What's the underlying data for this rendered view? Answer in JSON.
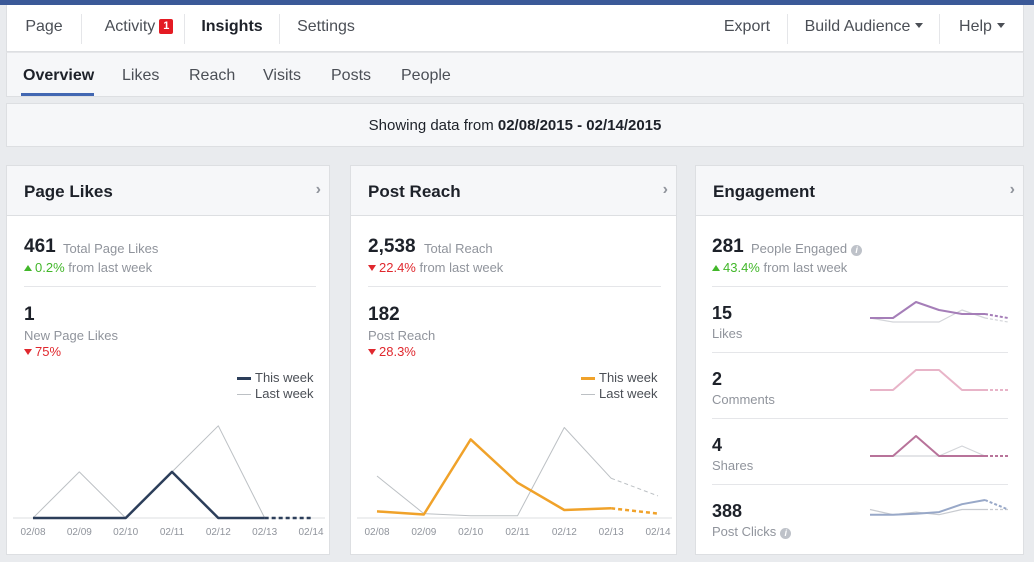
{
  "top_nav": {
    "left": [
      {
        "label": "Page"
      },
      {
        "label": "Activity",
        "badge": "1"
      },
      {
        "label": "Insights"
      },
      {
        "label": "Settings"
      }
    ],
    "export_label": "Export",
    "build_audience_label": "Build Audience",
    "help_label": "Help"
  },
  "sub_nav": {
    "tabs": [
      {
        "label": "Overview"
      },
      {
        "label": "Likes"
      },
      {
        "label": "Reach"
      },
      {
        "label": "Visits"
      },
      {
        "label": "Posts"
      },
      {
        "label": "People"
      }
    ]
  },
  "date_range": {
    "prefix": "Showing data from ",
    "range": "02/08/2015 - 02/14/2015"
  },
  "page_likes": {
    "title": "Page Likes",
    "total_value": "461",
    "total_label": "Total Page Likes",
    "total_change": "0.2%",
    "total_change_suffix": "from last week",
    "new_value": "1",
    "new_label": "New Page Likes",
    "new_change": "75%",
    "legend_this": "This week",
    "legend_last": "Last week",
    "color_this": "#2c3e5a",
    "color_last": "#bcc0c4",
    "chart_data": {
      "type": "line",
      "x": [
        "02/08",
        "02/09",
        "02/10",
        "02/11",
        "02/12",
        "02/13",
        "02/14"
      ],
      "ylim": [
        0,
        2.3
      ],
      "series": [
        {
          "name": "This week",
          "values": [
            0,
            0,
            0,
            1,
            0,
            0,
            0
          ]
        },
        {
          "name": "Last week",
          "values": [
            0,
            1,
            0,
            1,
            2,
            0,
            0
          ]
        }
      ]
    }
  },
  "post_reach": {
    "title": "Post Reach",
    "total_value": "2,538",
    "total_label": "Total Reach",
    "total_change": "22.4%",
    "total_change_suffix": "from last week",
    "post_value": "182",
    "post_label": "Post Reach",
    "post_change": "28.3%",
    "legend_this": "This week",
    "legend_last": "Last week",
    "color_this": "#f0a22a",
    "color_last": "#bcc0c4",
    "chart_data": {
      "type": "line",
      "x": [
        "02/08",
        "02/09",
        "02/10",
        "02/11",
        "02/12",
        "02/13",
        "02/14"
      ],
      "ylim": [
        0,
        240
      ],
      "series": [
        {
          "name": "This week",
          "values": [
            15,
            8,
            178,
            80,
            18,
            22,
            10
          ]
        },
        {
          "name": "Last week",
          "values": [
            95,
            10,
            5,
            5,
            205,
            90,
            50
          ]
        }
      ]
    }
  },
  "engagement": {
    "title": "Engagement",
    "people_value": "281",
    "people_label": "People Engaged",
    "people_change": "43.4%",
    "people_change_suffix": "from last week",
    "rows": [
      {
        "value": "15",
        "label": "Likes",
        "color_this": "#a57eb8",
        "color_last": "#d3d5d9",
        "this": [
          1,
          1,
          5,
          3,
          2,
          2,
          1
        ],
        "last": [
          1,
          0,
          0,
          0,
          3,
          1,
          0
        ]
      },
      {
        "value": "2",
        "label": "Comments",
        "color_this": "#e8b4c8",
        "color_last": "#d3d5d9",
        "this": [
          0,
          0,
          1,
          1,
          0,
          0,
          0
        ],
        "last": [
          0,
          0,
          1,
          1,
          0,
          0,
          0
        ]
      },
      {
        "value": "4",
        "label": "Shares",
        "color_this": "#b8739a",
        "color_last": "#d3d5d9",
        "this": [
          0,
          0,
          1,
          0,
          0,
          0,
          0
        ],
        "last": [
          0,
          0,
          0,
          0,
          0.5,
          0,
          0
        ]
      },
      {
        "value": "388",
        "label": "Post Clicks",
        "color_this": "#98a8c8",
        "color_last": "#c8cbd0",
        "this": [
          1,
          1,
          1.2,
          1.5,
          3,
          3.8,
          2
        ],
        "last": [
          2,
          1,
          1.5,
          1,
          2,
          2,
          2
        ]
      }
    ]
  }
}
